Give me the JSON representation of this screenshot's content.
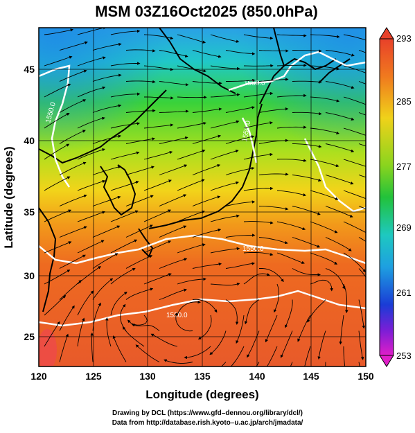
{
  "title": "MSM 03Z16Oct2025 (850.0hPa)",
  "xlabel": "Longitude (degrees)",
  "ylabel": "Latitude  (degrees)",
  "x_ticks": [
    "120",
    "125",
    "130",
    "135",
    "140",
    "145",
    "150"
  ],
  "y_ticks": [
    "25",
    "30",
    "35",
    "40",
    "45"
  ],
  "colorbar": {
    "ticks": [
      "293",
      "285",
      "277",
      "269",
      "261",
      "253"
    ],
    "min": 253,
    "max": 293
  },
  "contour_labels": [
    "1550.0",
    "1550.0",
    "1550.0",
    "1550.0",
    "1550.0"
  ],
  "credits": [
    "Drawing by DCL (https://www.gfd–dennou.org/library/dcl/)",
    "Data from http://database.rish.kyoto–u.ac.jp/arch/jmadata/"
  ],
  "colors": {
    "warm": "#e8532a",
    "orange": "#f07a1e",
    "yellow": "#e6e01a",
    "green": "#22c23a",
    "cyan": "#1ec8d6",
    "blue": "#1a3cd6",
    "magenta": "#d21ee0"
  },
  "chart_data": {
    "type": "map",
    "xlim": [
      120,
      150
    ],
    "ylim": [
      22.5,
      47.5
    ],
    "colorbar_range": [
      253,
      293
    ],
    "variable": "temperature (K) with 1550.0 geopotential contour and wind streamlines"
  }
}
